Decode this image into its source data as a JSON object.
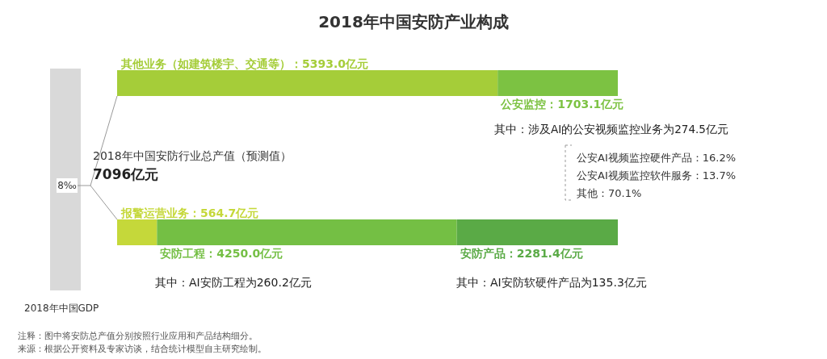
{
  "chart_data": {
    "type": "bar",
    "orientation": "horizontal",
    "stacked": true,
    "title": "2018年中国安防产业构成",
    "categories": [
      null,
      null
    ],
    "series": [
      {
        "color": "#a5cd39",
        "values": [
          5393.0,
          null
        ],
        "value_labels": [
          "其他业务（如建筑楼宇、交通等）：5393.0亿元",
          null
        ]
      },
      {
        "color": "#7cc242",
        "values": [
          1703.1,
          null
        ],
        "value_labels": [
          "公安监控：1703.1亿元",
          null
        ]
      },
      {
        "color": "#c5d83a",
        "values": [
          null,
          564.7
        ],
        "value_labels": [
          null,
          "报警运营业务：564.7亿元"
        ]
      },
      {
        "color": "#74bf44",
        "values": [
          null,
          4250.0
        ],
        "value_labels": [
          null,
          "安防工程：4250.0亿元"
        ]
      },
      {
        "color": "#5aaa46",
        "values": [
          null,
          2281.4
        ],
        "value_labels": [
          null,
          "安防产品：2281.4亿元"
        ]
      }
    ],
    "annotations": [
      "8‰",
      "2018年中国GDP",
      "2018年中国安防行业总产值（预测值）",
      "7096亿元",
      "其中：涉及AI的公安视频监控业务为274.5亿元",
      "公安AI视频监控硬件产品：16.2%",
      "公安AI视频监控软件服务：13.7%",
      "其他：70.1%",
      "其中：AI安防工程为260.2亿元",
      "其中：AI安防软硬件产品为135.3亿元",
      "注释：图中将安防总产值分别按照行业应用和产品结构细分。",
      "来源：根据公开资料及专家访谈，结合统计模型自主研究绘制。"
    ]
  }
}
